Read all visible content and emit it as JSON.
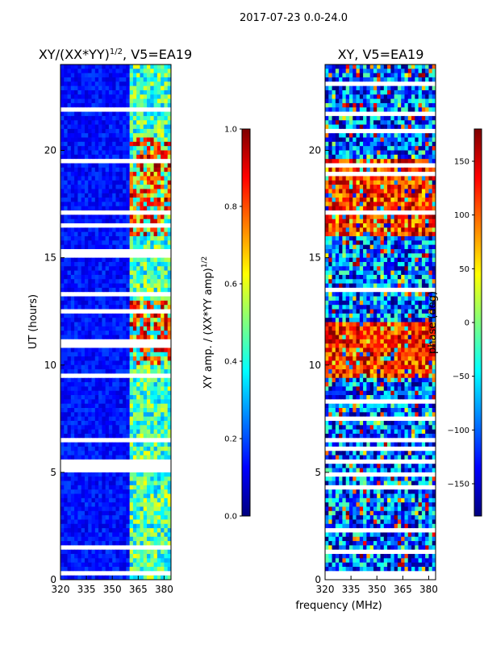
{
  "figure": {
    "suptitle": "2017-07-23 0.0-24.0",
    "xlabel": "frequency (MHz)"
  },
  "colors": {
    "jet": [
      "#00007f",
      "#0000ff",
      "#007fff",
      "#00ffff",
      "#7fff7f",
      "#ffff00",
      "#ff7f00",
      "#ff0000",
      "#7f0000"
    ],
    "gap": "#ffffff",
    "axis": "#000000"
  },
  "chart_data": [
    {
      "type": "heatmap",
      "name": "amplitude-panel",
      "title_main": "XY/(XX*YY)",
      "title_exp": "1/2",
      "title_tail": ", V5=EA19",
      "xlabel": "frequency (MHz)",
      "ylabel": "UT (hours)",
      "xlim": [
        320,
        384
      ],
      "ylim": [
        0,
        24
      ],
      "xticks": [
        320,
        335,
        350,
        365,
        380
      ],
      "yticks": [
        0,
        5,
        10,
        15,
        20
      ],
      "colorbar": {
        "label_main": "XY amp. / (XX*YY amp)",
        "label_exp": "1/2",
        "range": [
          0.0,
          1.0
        ],
        "ticks": [
          "0.0",
          "0.2",
          "0.4",
          "0.6",
          "0.8",
          "1.0"
        ],
        "tick_values": [
          0.0,
          0.2,
          0.4,
          0.6,
          0.8,
          1.0
        ]
      },
      "description_values": {
        "low_band_mhz": [
          320,
          361
        ],
        "low_band_level": 0.08,
        "high_band_mhz": [
          361,
          384
        ],
        "high_band_level": 0.45,
        "rfi_rows_hours": [
          [
            10.0,
            13.0
          ],
          [
            16.0,
            20.5
          ]
        ],
        "rfi_level": 0.85
      }
    },
    {
      "type": "heatmap",
      "name": "phase-panel",
      "title": "XY, V5=EA19",
      "xlabel": "frequency (MHz)",
      "ylabel": "",
      "xlim": [
        320,
        384
      ],
      "ylim": [
        0,
        24
      ],
      "xticks": [
        320,
        335,
        350,
        365,
        380
      ],
      "yticks": [
        0,
        5,
        10,
        15,
        20
      ],
      "colorbar": {
        "label": "phase (deg)",
        "range": [
          -180,
          180
        ],
        "ticks": [
          "150",
          "100",
          "50",
          "0",
          "−50",
          "−100",
          "−150"
        ],
        "tick_values": [
          150,
          100,
          50,
          0,
          -50,
          -100,
          -150
        ]
      },
      "description_values": {
        "warm_block_hours": [
          [
            9.5,
            12.0
          ],
          [
            16.0,
            19.5
          ]
        ],
        "warm_level_deg": 120,
        "cool_level_deg": -100
      }
    }
  ]
}
